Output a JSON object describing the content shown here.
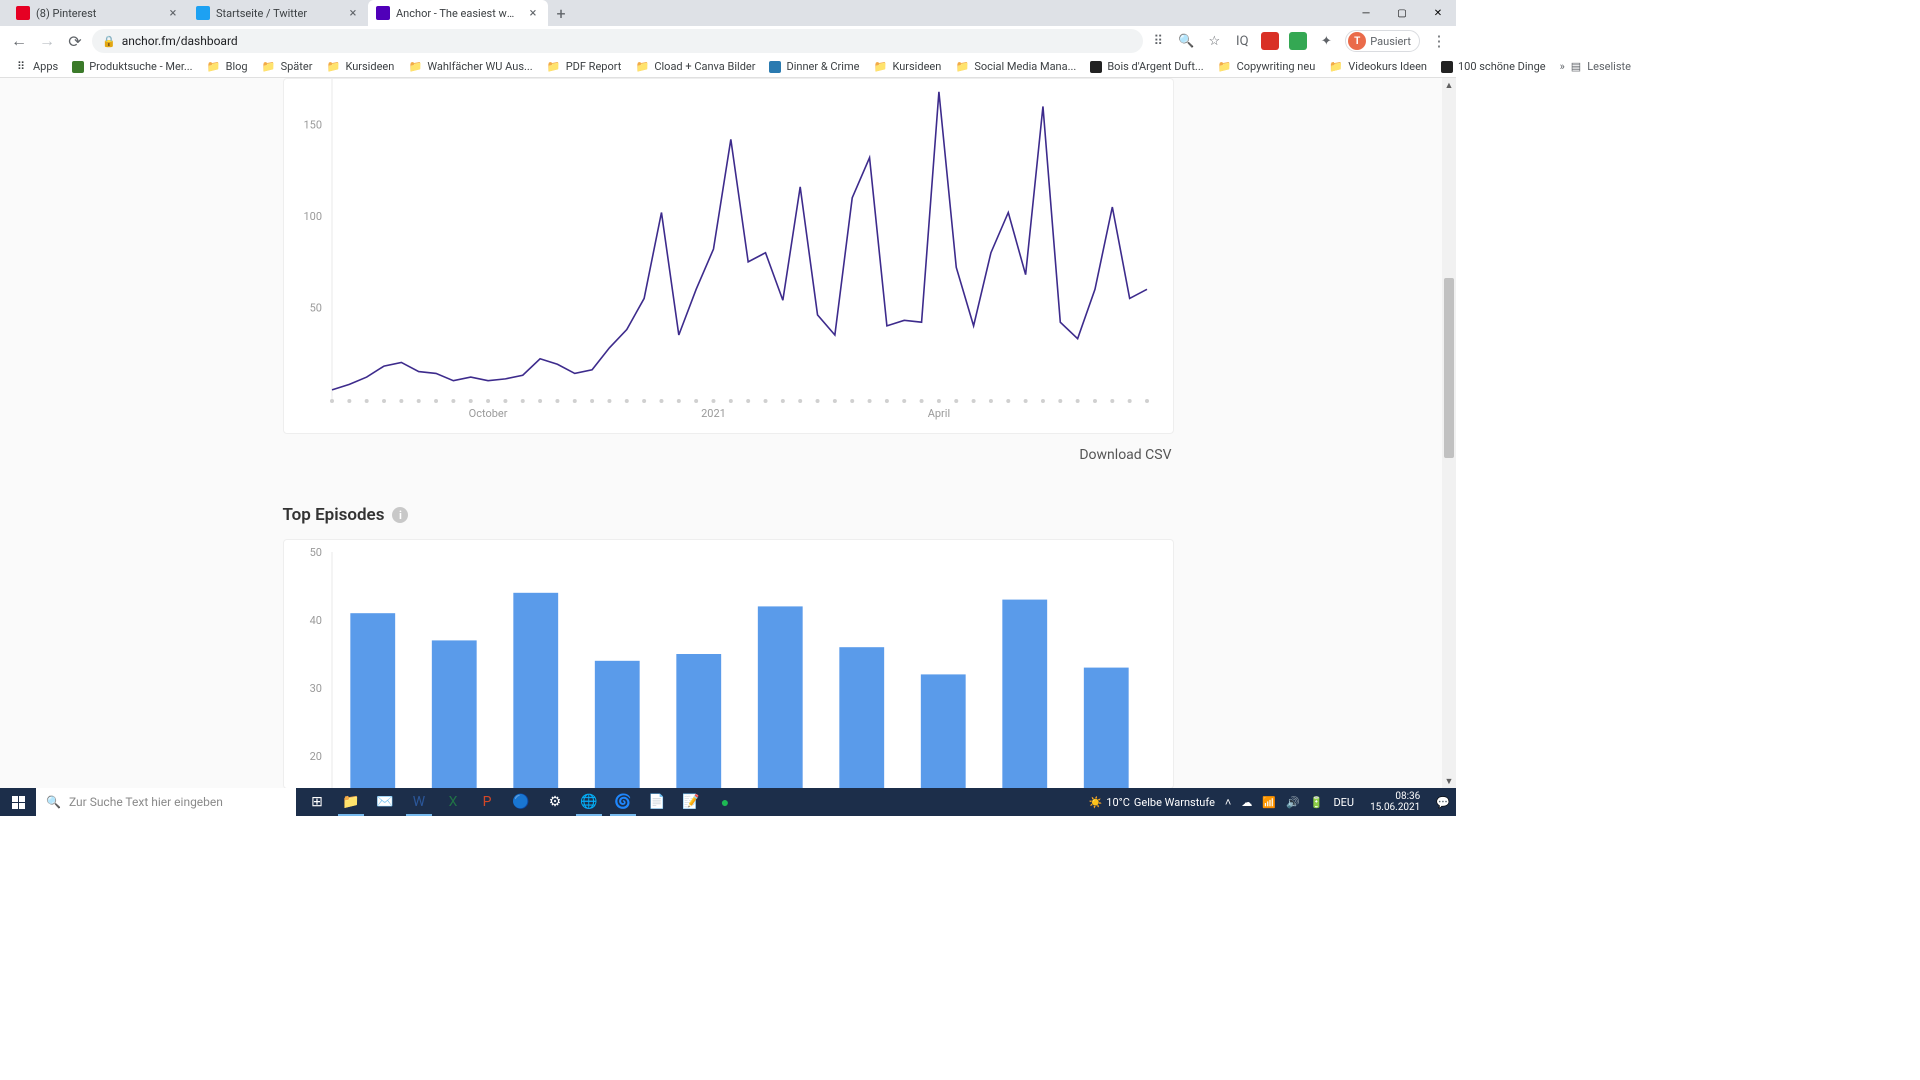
{
  "browser": {
    "tabs": [
      {
        "title": "(8) Pinterest",
        "favicon_color": "#e60023"
      },
      {
        "title": "Startseite / Twitter",
        "favicon_color": "#1da1f2"
      },
      {
        "title": "Anchor - The easiest way to ma",
        "favicon_color": "#5000b9",
        "active": true
      }
    ],
    "url": "anchor.fm/dashboard",
    "profile_label": "Pausiert",
    "profile_initial": "T",
    "bookmarks": [
      {
        "label": "Apps",
        "type": "apps"
      },
      {
        "label": "Produktsuche - Mer...",
        "type": "site",
        "color": "#3b7a2a"
      },
      {
        "label": "Blog",
        "type": "folder"
      },
      {
        "label": "Später",
        "type": "folder"
      },
      {
        "label": "Kursideen",
        "type": "folder"
      },
      {
        "label": "Wahlfächer WU Aus...",
        "type": "folder"
      },
      {
        "label": "PDF Report",
        "type": "folder"
      },
      {
        "label": "Cload + Canva Bilder",
        "type": "folder"
      },
      {
        "label": "Dinner & Crime",
        "type": "site",
        "color": "#2a7ab0"
      },
      {
        "label": "Kursideen",
        "type": "folder"
      },
      {
        "label": "Social Media Mana...",
        "type": "folder"
      },
      {
        "label": "Bois d'Argent Duft...",
        "type": "site",
        "color": "#222"
      },
      {
        "label": "Copywriting neu",
        "type": "folder"
      },
      {
        "label": "Videokurs Ideen",
        "type": "folder"
      },
      {
        "label": "100 schöne Dinge",
        "type": "site",
        "color": "#222"
      }
    ],
    "reading_list_label": "Leseliste"
  },
  "line_chart": {
    "type": "line",
    "line_color": "#3d2b8c",
    "line_width": 1.6,
    "background_color": "#ffffff",
    "dot_color": "#d0d0d0",
    "axis_color": "#e8e8e8",
    "tick_label_color": "#9a9a9a",
    "tick_fontsize": 11,
    "ylim": [
      0,
      175
    ],
    "y_ticks": [
      50,
      100,
      150
    ],
    "x_labels": [
      {
        "pos": 9,
        "text": "October"
      },
      {
        "pos": 22,
        "text": "2021"
      },
      {
        "pos": 35,
        "text": "April"
      }
    ],
    "values": [
      5,
      8,
      12,
      18,
      20,
      15,
      14,
      10,
      12,
      10,
      11,
      13,
      22,
      19,
      14,
      16,
      28,
      38,
      55,
      102,
      35,
      60,
      82,
      142,
      75,
      80,
      54,
      116,
      46,
      35,
      110,
      132,
      40,
      43,
      42,
      168,
      72,
      40,
      80,
      102,
      68,
      160,
      42,
      33,
      60,
      105,
      55,
      60
    ]
  },
  "download_csv_label": "Download CSV",
  "top_episodes": {
    "title": "Top Episodes",
    "bar_color": "#5a9bea",
    "background_color": "#ffffff",
    "axis_color": "#e8e8e8",
    "tick_label_color": "#9a9a9a",
    "tick_fontsize": 11,
    "ylim": [
      15,
      50
    ],
    "y_ticks": [
      20,
      30,
      40,
      50
    ],
    "bar_width": 0.55,
    "values": [
      41,
      37,
      44,
      34,
      35,
      42,
      36,
      32,
      43,
      33
    ]
  },
  "taskbar": {
    "search_placeholder": "Zur Suche Text hier eingeben",
    "weather_temp": "10°C",
    "weather_label": "Gelbe Warnstufe",
    "lang": "DEU",
    "time": "08:36",
    "date": "15.06.2021"
  }
}
